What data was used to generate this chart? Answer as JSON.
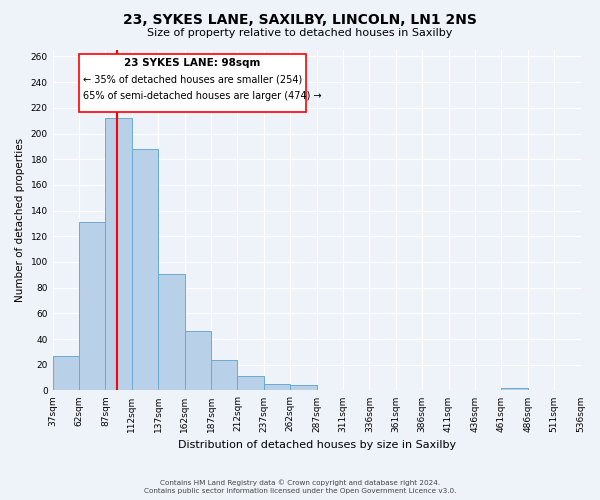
{
  "title1": "23, SYKES LANE, SAXILBY, LINCOLN, LN1 2NS",
  "title2": "Size of property relative to detached houses in Saxilby",
  "xlabel": "Distribution of detached houses by size in Saxilby",
  "ylabel": "Number of detached properties",
  "bar_heights": [
    27,
    131,
    212,
    188,
    91,
    46,
    24,
    11,
    5,
    4,
    0,
    0,
    0,
    0,
    0,
    0,
    0,
    2,
    0,
    0
  ],
  "bin_edges": [
    0,
    1,
    2,
    3,
    4,
    5,
    6,
    7,
    8,
    9,
    10,
    11,
    12,
    13,
    14,
    15,
    16,
    17,
    18,
    19,
    20
  ],
  "tick_labels": [
    "37sqm",
    "62sqm",
    "87sqm",
    "112sqm",
    "137sqm",
    "162sqm",
    "187sqm",
    "212sqm",
    "237sqm",
    "262sqm",
    "287sqm",
    "311sqm",
    "336sqm",
    "361sqm",
    "386sqm",
    "411sqm",
    "436sqm",
    "461sqm",
    "486sqm",
    "511sqm",
    "536sqm"
  ],
  "bar_color": "#b8d0e8",
  "bar_edge_color": "#6aaad4",
  "red_line_x": 2.44,
  "ylim": [
    0,
    265
  ],
  "yticks": [
    0,
    20,
    40,
    60,
    80,
    100,
    120,
    140,
    160,
    180,
    200,
    220,
    240,
    260
  ],
  "annotation_title": "23 SYKES LANE: 98sqm",
  "annotation_line1": "← 35% of detached houses are smaller (254)",
  "annotation_line2": "65% of semi-detached houses are larger (474) →",
  "footer1": "Contains HM Land Registry data © Crown copyright and database right 2024.",
  "footer2": "Contains public sector information licensed under the Open Government Licence v3.0.",
  "background_color": "#eef2f9"
}
